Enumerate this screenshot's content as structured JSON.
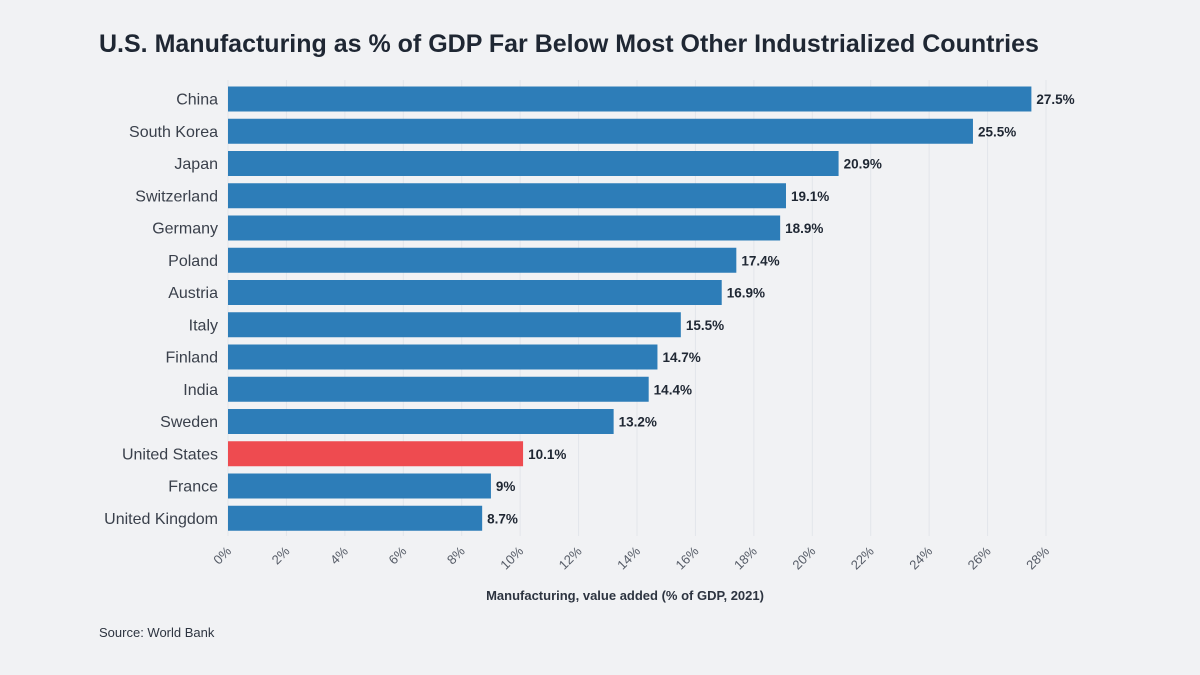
{
  "title": "U.S. Manufacturing as % of GDP Far Below Most Other Industrialized Countries",
  "source": "Source: World Bank",
  "colors": {
    "bar": "#2d7db8",
    "highlight": "#ee4b50",
    "grid": "#e2e5ea",
    "background": "#f1f2f4"
  },
  "chart_data": {
    "type": "bar",
    "orientation": "horizontal",
    "categories": [
      "China",
      "South Korea",
      "Japan",
      "Switzerland",
      "Germany",
      "Poland",
      "Austria",
      "Italy",
      "Finland",
      "India",
      "Sweden",
      "United States",
      "France",
      "United Kingdom"
    ],
    "values": [
      27.5,
      25.5,
      20.9,
      19.1,
      18.9,
      17.4,
      16.9,
      15.5,
      14.7,
      14.4,
      13.2,
      10.1,
      9,
      8.7
    ],
    "value_labels": [
      "27.5%",
      "25.5%",
      "20.9%",
      "19.1%",
      "18.9%",
      "17.4%",
      "16.9%",
      "15.5%",
      "14.7%",
      "14.4%",
      "13.2%",
      "10.1%",
      "9%",
      "8.7%"
    ],
    "highlight_category": "United States",
    "xlabel": "Manufacturing, value added (% of GDP, 2021)",
    "ylabel": "",
    "xlim": [
      0,
      28
    ],
    "xticks": [
      0,
      2,
      4,
      6,
      8,
      10,
      12,
      14,
      16,
      18,
      20,
      22,
      24,
      26,
      28
    ],
    "xtick_labels": [
      "0%",
      "2%",
      "4%",
      "6%",
      "8%",
      "10%",
      "12%",
      "14%",
      "16%",
      "18%",
      "20%",
      "22%",
      "24%",
      "26%",
      "28%"
    ],
    "grid": true,
    "legend": false
  }
}
